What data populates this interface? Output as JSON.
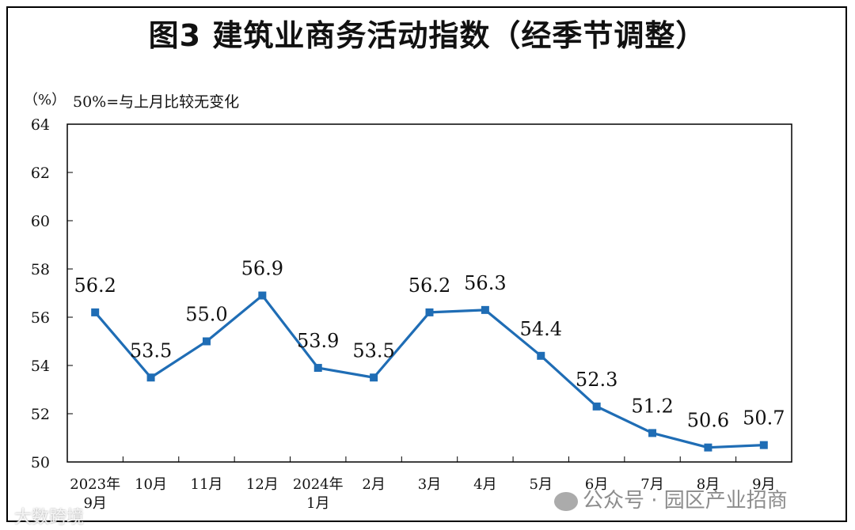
{
  "title": "图3  建筑业商务活动指数（经季节调整）",
  "unit_label": "（%）",
  "note": "50%=与上月比较无变化",
  "chart_data": {
    "type": "line",
    "categories": [
      "2023年\n9月",
      "10月",
      "11月",
      "12月",
      "2024年\n1月",
      "2月",
      "3月",
      "4月",
      "5月",
      "6月",
      "7月",
      "8月",
      "9月"
    ],
    "values": [
      56.2,
      53.5,
      55.0,
      56.9,
      53.9,
      53.5,
      56.2,
      56.3,
      54.4,
      52.3,
      51.2,
      50.6,
      50.7
    ],
    "data_labels": [
      "56.2",
      "53.5",
      "55.0",
      "56.9",
      "53.9",
      "53.5",
      "56.2",
      "56.3",
      "54.4",
      "52.3",
      "51.2",
      "50.6",
      "50.7"
    ],
    "yticks": [
      "50",
      "52",
      "54",
      "56",
      "58",
      "60",
      "62",
      "64"
    ],
    "ylim": [
      50,
      64
    ],
    "grid": false,
    "line_color": "#1f6db5"
  },
  "watermark": {
    "left_text": "大数跨境",
    "right_text": "公众号 · 园区产业招商"
  }
}
